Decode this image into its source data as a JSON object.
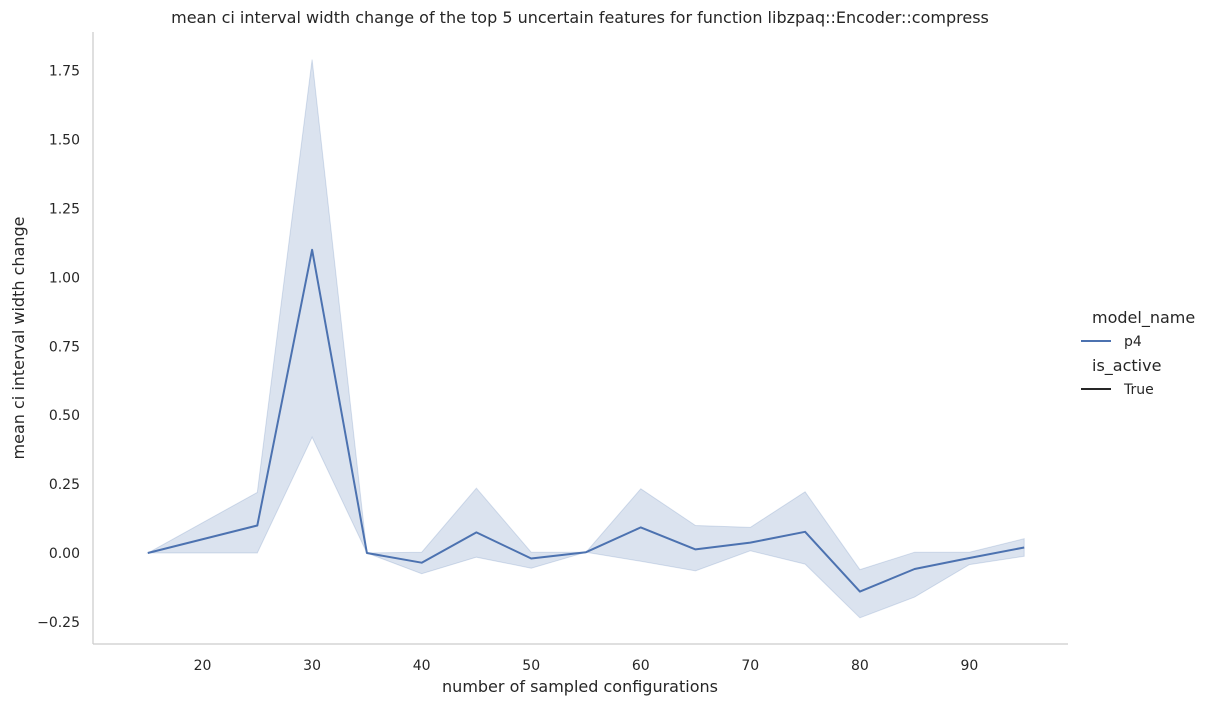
{
  "chart_data": {
    "type": "line",
    "title": "mean ci interval width change of the top 5 uncertain features for function libzpaq::Encoder::compress",
    "xlabel": "number of sampled configurations",
    "ylabel": "mean ci interval width change",
    "xlim": [
      10,
      99
    ],
    "ylim": [
      -0.33,
      1.89
    ],
    "xticks": [
      20,
      30,
      40,
      50,
      60,
      70,
      80,
      90
    ],
    "yticks": [
      -0.25,
      0.0,
      0.25,
      0.5,
      0.75,
      1.0,
      1.25,
      1.5,
      1.75
    ],
    "ytick_labels": [
      "−0.25",
      "0.00",
      "0.25",
      "0.50",
      "0.75",
      "1.00",
      "1.25",
      "1.50",
      "1.75"
    ],
    "grid": false,
    "legend_position": "right",
    "series": [
      {
        "name": "p4",
        "is_active": "True",
        "color": "#4c72b0",
        "x": [
          15,
          25,
          30,
          35,
          40,
          45,
          50,
          55,
          60,
          65,
          70,
          75,
          80,
          85,
          90,
          95
        ],
        "values": [
          0.0,
          0.1,
          1.1,
          0.0,
          -0.035,
          0.075,
          -0.02,
          0.003,
          0.093,
          0.013,
          0.038,
          0.077,
          -0.14,
          -0.058,
          -0.018,
          0.02
        ],
        "ci_lower": [
          0.0,
          0.0,
          0.42,
          0.0,
          -0.075,
          -0.015,
          -0.055,
          0.003,
          -0.03,
          -0.065,
          0.008,
          -0.04,
          -0.235,
          -0.16,
          -0.042,
          -0.012
        ],
        "ci_upper": [
          0.0,
          0.22,
          1.79,
          0.0,
          0.003,
          0.235,
          0.003,
          0.003,
          0.233,
          0.1,
          0.093,
          0.222,
          -0.06,
          0.003,
          0.003,
          0.052
        ]
      }
    ]
  },
  "legend": {
    "hue_title": "model_name",
    "style_title": "is_active",
    "hue_entries": [
      {
        "label": "p4",
        "color": "#4c72b0"
      }
    ],
    "style_entries": [
      {
        "label": "True",
        "color": "#262626"
      }
    ]
  }
}
